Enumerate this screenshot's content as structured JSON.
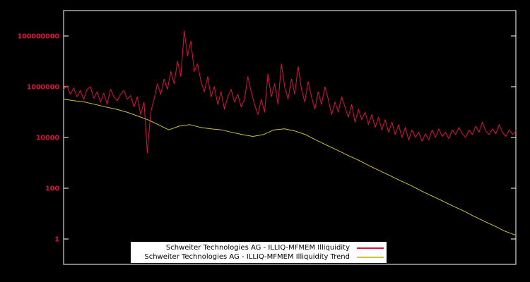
{
  "figure": {
    "background": "#000000",
    "plot_border_color": "#ffffff"
  },
  "legend": {
    "items": [
      {
        "label": "Schweiter Technologies AG - ILLIQ-MFMEM Illiquidity",
        "color": "#dc143c"
      },
      {
        "label": "Schweiter Technologies AG - ILLIQ-MFMEM Illiquidity Trend",
        "color": "#cfc33e"
      }
    ]
  },
  "chart_data": {
    "type": "line",
    "title": "",
    "xlabel": "",
    "ylabel": "",
    "y_scale": "log",
    "ylim": [
      0.1,
      1000000000
    ],
    "grid": false,
    "legend_position": "bottom-center",
    "tick_label_color": "#dc143c",
    "yticks": [
      {
        "value": 1,
        "label": "1"
      },
      {
        "value": 100,
        "label": "100"
      },
      {
        "value": 10000,
        "label": "10000"
      },
      {
        "value": 1000000,
        "label": "1000000"
      },
      {
        "value": 100000000,
        "label": "100000000"
      }
    ],
    "series": [
      {
        "name": "Schweiter Technologies AG - ILLIQ-MFMEM Illiquidity",
        "color": "#dc143c",
        "values": [
          790000,
          1100000,
          500000,
          890000,
          400000,
          710000,
          320000,
          790000,
          1000000,
          350000,
          630000,
          250000,
          560000,
          200000,
          790000,
          400000,
          280000,
          500000,
          710000,
          320000,
          450000,
          160000,
          400000,
          79000,
          250000,
          2500,
          100000,
          320000,
          1300000,
          500000,
          2000000,
          790000,
          4000000,
          1300000,
          10000000,
          2500000,
          160000000,
          16000000,
          63000000,
          4000000,
          7900000,
          1600000,
          630000,
          2500000,
          400000,
          1000000,
          200000,
          630000,
          130000,
          400000,
          790000,
          250000,
          500000,
          160000,
          320000,
          2500000,
          630000,
          200000,
          79000,
          320000,
          100000,
          3200000,
          400000,
          1300000,
          200000,
          7900000,
          1000000,
          320000,
          2000000,
          500000,
          6300000,
          790000,
          250000,
          1600000,
          400000,
          130000,
          630000,
          200000,
          1000000,
          320000,
          79000,
          250000,
          100000,
          400000,
          160000,
          63000,
          200000,
          40000,
          130000,
          50000,
          100000,
          32000,
          79000,
          25000,
          63000,
          20000,
          50000,
          16000,
          40000,
          13000,
          32000,
          10000,
          25000,
          7900,
          20000,
          10000,
          16000,
          7100,
          14000,
          7900,
          20000,
          10000,
          22000,
          11000,
          16000,
          8900,
          20000,
          13000,
          25000,
          14000,
          10000,
          20000,
          13000,
          28000,
          16000,
          40000,
          18000,
          13000,
          22000,
          14000,
          32000,
          16000,
          11000,
          20000,
          13000,
          18000
        ]
      },
      {
        "name": "Schweiter Technologies AG - ILLIQ-MFMEM Illiquidity Trend",
        "color": "#cfc33e",
        "values": [
          320000,
          280000,
          250000,
          200000,
          160000,
          130000,
          100000,
          71000,
          50000,
          32000,
          20000,
          28000,
          32000,
          25000,
          22000,
          20000,
          16000,
          13000,
          11000,
          13000,
          20000,
          22000,
          18000,
          13000,
          7900,
          5000,
          3200,
          2000,
          1300,
          790,
          500,
          320,
          200,
          130,
          79,
          50,
          32,
          20,
          13,
          7.9,
          5.0,
          3.2,
          2.0,
          1.4
        ]
      }
    ]
  }
}
